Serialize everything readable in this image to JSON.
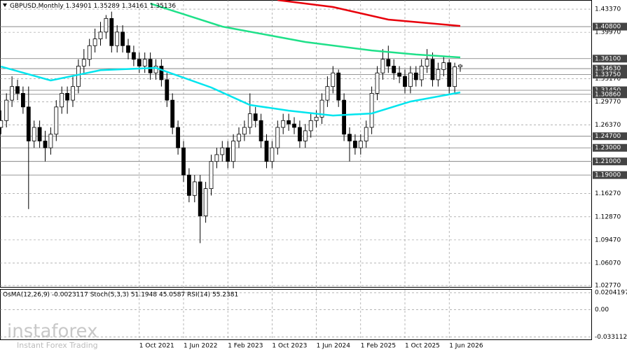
{
  "chart_data": [
    {
      "type": "candlestick",
      "title": "GBPUSD,Monthly",
      "categories": [
        null,
        null,
        null,
        null,
        null,
        null,
        null,
        null,
        null,
        null,
        null,
        null,
        null,
        null,
        null,
        null,
        null,
        null,
        null,
        null,
        null,
        null,
        null,
        null,
        null,
        "1 Oct 2021",
        null,
        null,
        null,
        null,
        null,
        null,
        null,
        "1 Jun 2022",
        null,
        null,
        null,
        null,
        null,
        null,
        null,
        "1 Feb 2023",
        null,
        null,
        null,
        null,
        null,
        null,
        null,
        "1 Oct 2023",
        null,
        null,
        null,
        null,
        null,
        null,
        null,
        "1 Jun 2024",
        null,
        null,
        null,
        null,
        null,
        null,
        null,
        "1 Feb 2025",
        null,
        null,
        null,
        null,
        null,
        null,
        null,
        "1 Oct 2025",
        null,
        null,
        null,
        null,
        null,
        null,
        null,
        "1 Jun 2026",
        null,
        null
      ],
      "open": [
        1.26,
        1.27,
        1.3,
        1.32,
        1.31,
        1.29,
        1.24,
        1.26,
        1.24,
        1.23,
        1.25,
        1.29,
        1.31,
        1.3,
        1.32,
        1.35,
        1.36,
        1.38,
        1.39,
        1.4,
        1.42,
        1.38,
        1.4,
        1.38,
        1.37,
        1.36,
        1.35,
        1.36,
        1.34,
        1.35,
        1.33,
        1.3,
        1.26,
        1.23,
        1.19,
        1.16,
        1.18,
        1.13,
        1.17,
        1.21,
        1.22,
        1.23,
        1.21,
        1.24,
        1.25,
        1.26,
        1.28,
        1.27,
        1.24,
        1.21,
        1.23,
        1.26,
        1.27,
        1.265,
        1.26,
        1.24,
        1.255,
        1.27,
        1.275,
        1.3,
        1.32,
        1.34,
        1.3,
        1.25,
        1.24,
        1.23,
        1.24,
        1.26,
        1.31,
        1.34,
        1.36,
        1.35,
        1.34,
        1.335,
        1.32,
        1.34,
        1.33,
        1.35,
        1.36,
        1.33,
        1.345,
        1.355,
        1.32,
        1.34901
      ],
      "high": [
        1.285,
        1.31,
        1.335,
        1.33,
        1.32,
        1.32,
        1.27,
        1.27,
        1.255,
        1.26,
        1.3,
        1.32,
        1.32,
        1.335,
        1.36,
        1.375,
        1.39,
        1.405,
        1.415,
        1.425,
        1.43,
        1.41,
        1.41,
        1.39,
        1.38,
        1.37,
        1.37,
        1.37,
        1.36,
        1.36,
        1.34,
        1.31,
        1.27,
        1.24,
        1.2,
        1.19,
        1.19,
        1.18,
        1.22,
        1.23,
        1.24,
        1.24,
        1.25,
        1.26,
        1.27,
        1.31,
        1.29,
        1.28,
        1.25,
        1.24,
        1.27,
        1.28,
        1.28,
        1.275,
        1.27,
        1.265,
        1.28,
        1.285,
        1.31,
        1.335,
        1.35,
        1.345,
        1.31,
        1.26,
        1.25,
        1.25,
        1.27,
        1.32,
        1.35,
        1.375,
        1.38,
        1.36,
        1.35,
        1.345,
        1.35,
        1.35,
        1.36,
        1.375,
        1.37,
        1.355,
        1.365,
        1.36,
        1.355,
        1.35289
      ],
      "low": [
        1.25,
        1.26,
        1.29,
        1.3,
        1.28,
        1.14,
        1.23,
        1.23,
        1.21,
        1.22,
        1.24,
        1.28,
        1.28,
        1.29,
        1.31,
        1.34,
        1.35,
        1.37,
        1.38,
        1.39,
        1.37,
        1.37,
        1.37,
        1.36,
        1.35,
        1.34,
        1.34,
        1.33,
        1.33,
        1.32,
        1.29,
        1.25,
        1.22,
        1.18,
        1.15,
        1.15,
        1.09,
        1.12,
        1.16,
        1.2,
        1.21,
        1.2,
        1.2,
        1.23,
        1.24,
        1.25,
        1.26,
        1.23,
        1.2,
        1.2,
        1.22,
        1.25,
        1.255,
        1.25,
        1.23,
        1.23,
        1.245,
        1.26,
        1.265,
        1.29,
        1.31,
        1.29,
        1.24,
        1.21,
        1.22,
        1.22,
        1.23,
        1.25,
        1.3,
        1.33,
        1.34,
        1.33,
        1.325,
        1.31,
        1.31,
        1.32,
        1.32,
        1.34,
        1.32,
        1.32,
        1.335,
        1.31,
        1.31,
        1.34161
      ],
      "close": [
        1.27,
        1.3,
        1.32,
        1.31,
        1.29,
        1.24,
        1.26,
        1.24,
        1.23,
        1.25,
        1.29,
        1.31,
        1.3,
        1.32,
        1.35,
        1.36,
        1.38,
        1.39,
        1.4,
        1.42,
        1.38,
        1.4,
        1.38,
        1.37,
        1.36,
        1.35,
        1.36,
        1.34,
        1.35,
        1.33,
        1.3,
        1.26,
        1.23,
        1.19,
        1.16,
        1.18,
        1.13,
        1.17,
        1.21,
        1.22,
        1.23,
        1.21,
        1.24,
        1.25,
        1.26,
        1.28,
        1.27,
        1.24,
        1.21,
        1.23,
        1.26,
        1.27,
        1.265,
        1.26,
        1.24,
        1.255,
        1.27,
        1.275,
        1.3,
        1.32,
        1.34,
        1.3,
        1.25,
        1.24,
        1.23,
        1.24,
        1.26,
        1.31,
        1.34,
        1.36,
        1.35,
        1.34,
        1.335,
        1.32,
        1.34,
        1.33,
        1.35,
        1.36,
        1.33,
        1.345,
        1.355,
        1.32,
        1.349,
        1.35136
      ],
      "lines": [
        {
          "color": "#00e5ee",
          "x": [
            0,
            9,
            18,
            28,
            38,
            45,
            52,
            60,
            67,
            74,
            83
          ],
          "values": [
            1.3494,
            1.3289,
            1.344,
            1.3474,
            1.3186,
            1.2929,
            1.2846,
            1.2774,
            1.2805,
            1.298,
            1.3114
          ]
        },
        {
          "color": "#1fe089",
          "x": [
            27,
            40,
            55,
            67,
            75,
            83
          ],
          "values": [
            1.4419,
            1.408,
            1.3854,
            1.373,
            1.367,
            1.3628
          ]
        },
        {
          "color": "#e8000b",
          "x": [
            50,
            60,
            70,
            83
          ],
          "values": [
            1.447,
            1.4368,
            1.4183,
            1.409
          ]
        }
      ],
      "ylim": [
        1.0257,
        1.4471
      ],
      "yticks": [
        {
          "value": 1.4337,
          "label": "1.43370"
        },
        {
          "value": 1.3997,
          "label": "1.39970"
        },
        {
          "value": 1.3317,
          "label": "1.33170"
        },
        {
          "value": 1.2977,
          "label": "1.29770"
        },
        {
          "value": 1.2637,
          "label": "1.26370"
        },
        {
          "value": 1.1627,
          "label": "1.16270"
        },
        {
          "value": 1.1287,
          "label": "1.12870"
        },
        {
          "value": 1.0947,
          "label": "1.09470"
        },
        {
          "value": 1.0607,
          "label": "1.06070"
        },
        {
          "value": 1.0277,
          "label": "1.02770"
        }
      ],
      "levels": [
        {
          "value": 1.408,
          "label": "1.40800"
        },
        {
          "value": 1.361,
          "label": "1.36100"
        },
        {
          "value": 1.3463,
          "label": "1.34630"
        },
        {
          "value": 1.3375,
          "label": "1.33750"
        },
        {
          "value": 1.3145,
          "label": "1.31450"
        },
        {
          "value": 1.3086,
          "label": "1.30860"
        },
        {
          "value": 1.247,
          "label": "1.24700"
        },
        {
          "value": 1.23,
          "label": "1.23000"
        },
        {
          "value": 1.21,
          "label": "1.21000"
        },
        {
          "value": 1.19,
          "label": "1.19000"
        }
      ],
      "grid": true
    },
    {
      "type": "oscillator",
      "title": "OsMA(12,26,9) -0.0023117 Stoch(5,3,3) 51.1948 45.0587 RSI(14) 55.2381",
      "ylim": [
        -0.036,
        0.024
      ],
      "yticks": [
        0.0204197,
        {
          "value": 0,
          "label": "0.00"
        },
        -0.033112
      ]
    },
    {
      "type": "watermark",
      "brand": "instaforex",
      "tagline": "Instant Forex Trading"
    }
  ]
}
